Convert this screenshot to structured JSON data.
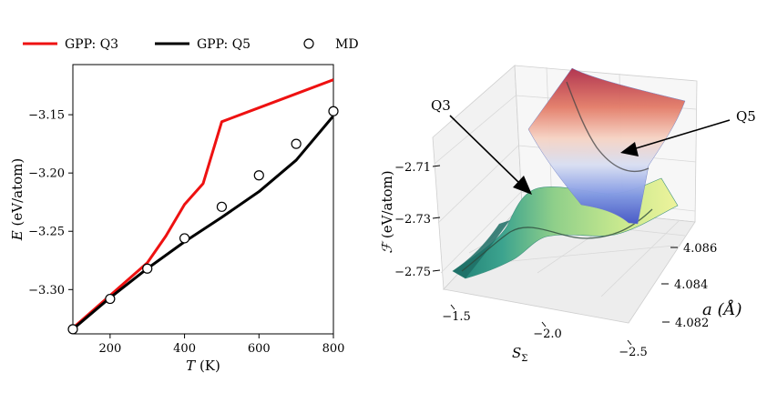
{
  "chart_data": [
    {
      "type": "line",
      "xlabel": "T (K)",
      "xlabel_main": "T",
      "xlabel_unit": "(K)",
      "ylabel": "E (eV/atom)",
      "ylabel_main": "E",
      "ylabel_unit": "(eV/atom)",
      "xlim": [
        100,
        800
      ],
      "ylim": [
        -3.338,
        -3.107
      ],
      "xticks": [
        200,
        400,
        600,
        800
      ],
      "xtick_labels": [
        "200",
        "400",
        "600",
        "800"
      ],
      "yticks": [
        -3.15,
        -3.2,
        -3.25,
        -3.3
      ],
      "ytick_labels": [
        "−3.15",
        "−3.20",
        "−3.25",
        "−3.30"
      ],
      "legend": {
        "location": "top, above axes",
        "entries": [
          {
            "label": "GPP: Q3",
            "style": "line",
            "color": "#ee1111"
          },
          {
            "label": "GPP: Q5",
            "style": "line",
            "color": "#000000"
          },
          {
            "label": "MD",
            "style": "open-circle",
            "color": "#000000"
          }
        ]
      },
      "series": [
        {
          "name": "GPP: Q3",
          "color": "#ee1111",
          "x": [
            100,
            200,
            300,
            350,
            400,
            450,
            500,
            600,
            700,
            800
          ],
          "y": [
            -3.333,
            -3.305,
            -3.277,
            -3.254,
            -3.227,
            -3.209,
            -3.156,
            -3.144,
            -3.132,
            -3.12
          ]
        },
        {
          "name": "GPP: Q5",
          "color": "#000000",
          "x": [
            100,
            200,
            300,
            400,
            500,
            600,
            700,
            800
          ],
          "y": [
            -3.334,
            -3.307,
            -3.282,
            -3.259,
            -3.238,
            -3.216,
            -3.189,
            -3.151
          ]
        },
        {
          "name": "MD",
          "marker": "open-circle",
          "x": [
            100,
            200,
            300,
            400,
            500,
            600,
            700,
            800
          ],
          "y": [
            -3.334,
            -3.308,
            -3.282,
            -3.256,
            -3.229,
            -3.202,
            -3.175,
            -3.147
          ]
        }
      ]
    },
    {
      "type": "surface3d",
      "xlabel": "S_Σ",
      "xlabel_main": "S",
      "xlabel_sub": "Σ",
      "ylabel": "a (Å)",
      "zlabel": "ℱ (eV/atom)",
      "zlabel_main": "ℱ",
      "zlabel_unit": "(eV/atom)",
      "xticks": [
        -1.5,
        -2.0,
        -2.5
      ],
      "xtick_labels": [
        "−1.5",
        "−2.0",
        "−2.5"
      ],
      "yticks": [
        4.082,
        4.084,
        4.086
      ],
      "ytick_labels": [
        "4.082",
        "4.084",
        "4.086"
      ],
      "zticks": [
        -2.71,
        -2.73,
        -2.75
      ],
      "ztick_labels": [
        "−2.71",
        "−2.73",
        "−2.75"
      ],
      "colormap": "Spectral_r",
      "annotations": [
        {
          "label": "Q3",
          "text": "Q3"
        },
        {
          "label": "Q5",
          "text": "Q5"
        }
      ]
    }
  ]
}
